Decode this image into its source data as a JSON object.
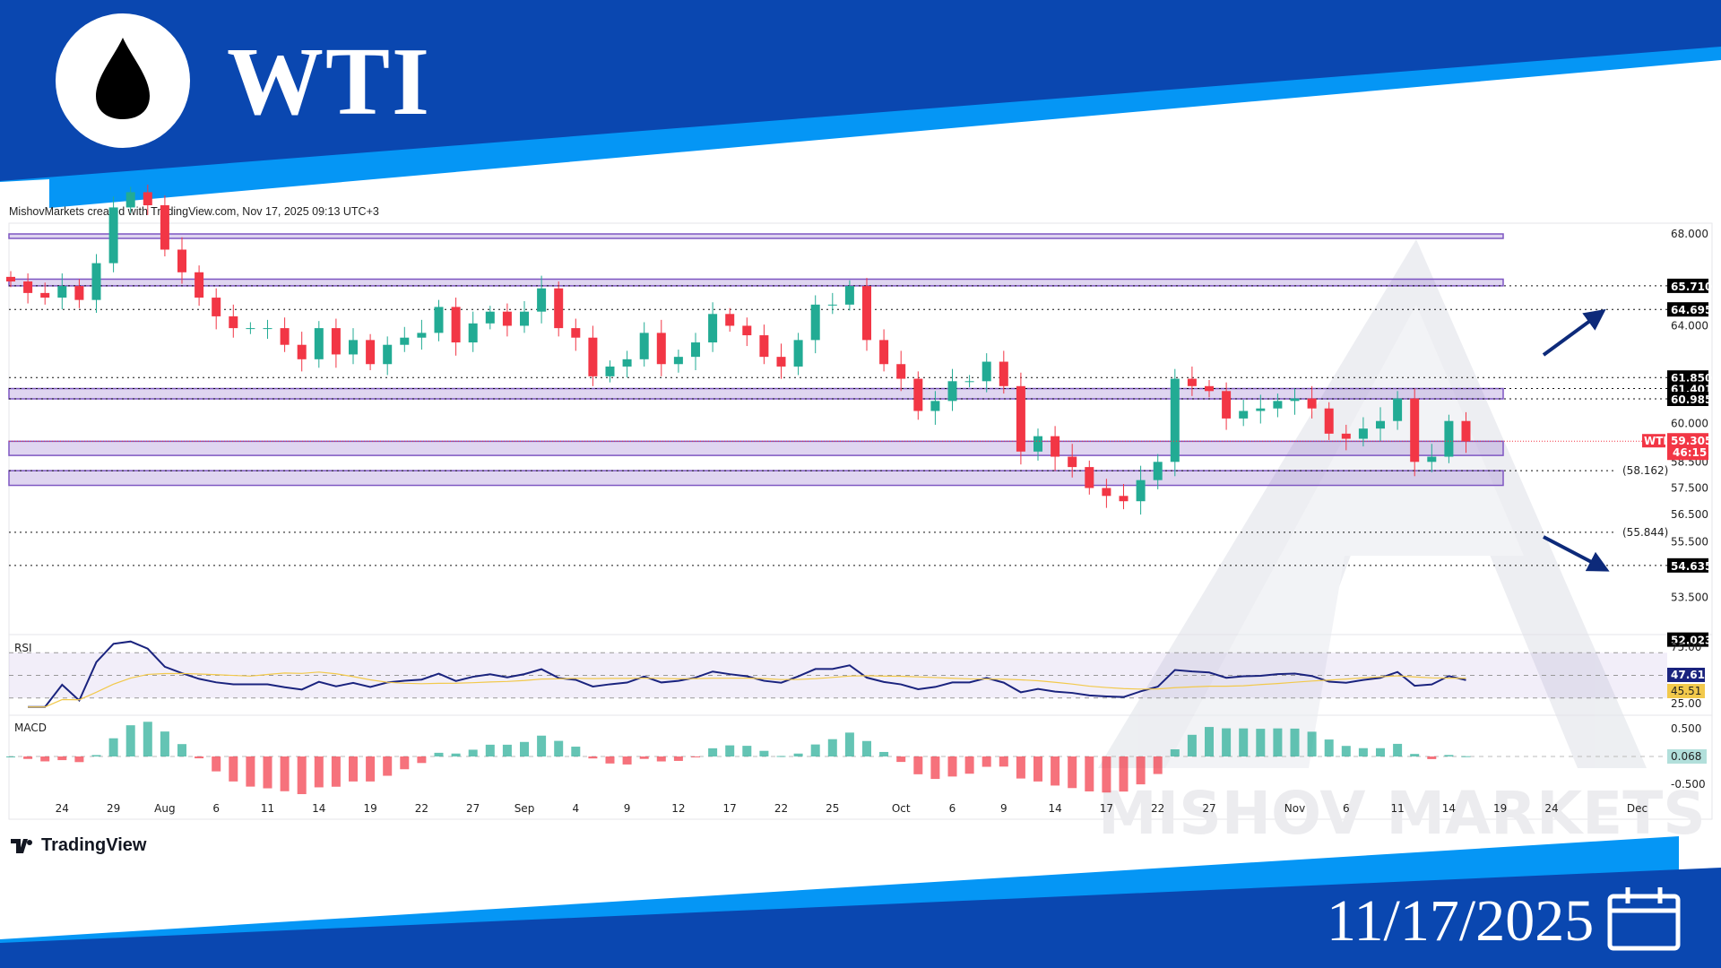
{
  "header": {
    "title": "WTI",
    "logo_icon": "oil-drop-icon"
  },
  "subtitle": "MishovMarkets created with TradingView.com, Nov 17, 2025 09:13 UTC+3",
  "footer": {
    "date": "11/17/2025",
    "calendar_icon": "calendar-icon",
    "brand": "TradingView"
  },
  "watermark": "MISHOV MARKETS",
  "colors": {
    "banner_dark": "#0a47b0",
    "banner_light": "#0596f5",
    "up": "#22ab94",
    "down": "#f23645",
    "zone": "#7e57c2",
    "arrow": "#0d2a7a",
    "rsi": "#1a237e",
    "rsi_ma": "#f2c94c"
  },
  "chart_data": {
    "type": "candlestick",
    "symbol": "WTI",
    "price_scale": "log",
    "start_date": "2025-07-21",
    "closes": [
      65.9,
      65.4,
      65.2,
      65.7,
      65.1,
      66.7,
      69.2,
      69.9,
      69.3,
      67.3,
      66.3,
      65.2,
      64.4,
      63.9,
      63.9,
      63.9,
      63.2,
      62.6,
      63.9,
      62.8,
      63.4,
      62.4,
      63.2,
      63.5,
      63.7,
      64.8,
      63.3,
      64.1,
      64.6,
      64.0,
      64.6,
      65.6,
      63.9,
      63.5,
      61.9,
      62.3,
      62.6,
      63.7,
      62.4,
      62.7,
      63.3,
      64.5,
      64.0,
      63.6,
      62.7,
      62.3,
      63.4,
      64.9,
      64.9,
      65.7,
      63.4,
      62.4,
      61.8,
      60.5,
      60.9,
      61.7,
      61.7,
      62.5,
      61.5,
      58.9,
      59.5,
      58.7,
      58.3,
      57.5,
      57.2,
      57.0,
      57.8,
      58.5,
      61.8,
      61.5,
      61.3,
      60.2,
      60.5,
      60.6,
      60.9,
      61.0,
      60.6,
      59.6,
      59.4,
      59.8,
      60.1,
      61.0,
      58.5,
      58.7,
      60.1,
      59.3
    ],
    "price_ticks": [
      "68.000",
      "64.000",
      "60.000",
      "58.500",
      "57.500",
      "56.500",
      "55.500",
      "53.500"
    ],
    "levels": [
      {
        "price": 65.71,
        "label": "65.710",
        "style": "box"
      },
      {
        "price": 64.695,
        "label": "64.695",
        "style": "box"
      },
      {
        "price": 61.85,
        "label": "61.850",
        "style": "box"
      },
      {
        "price": 61.401,
        "label": "61.401",
        "style": "box"
      },
      {
        "price": 60.985,
        "label": "60.985",
        "style": "box"
      },
      {
        "price": 58.162,
        "label": "(58.162)",
        "style": "inline"
      },
      {
        "price": 55.844,
        "label": "(55.844)",
        "style": "inline"
      },
      {
        "price": 54.635,
        "label": "54.635",
        "style": "box"
      },
      {
        "price": 52.023,
        "label": "52.023",
        "style": "box"
      }
    ],
    "zones": [
      [
        67.8,
        68.0
      ],
      [
        65.71,
        66.0
      ],
      [
        60.985,
        61.401
      ],
      [
        58.75,
        59.3
      ],
      [
        57.6,
        58.162
      ]
    ],
    "current": {
      "symbol": "WTI",
      "price": "59.305",
      "countdown": "46:15",
      "value": 59.305
    },
    "arrows": [
      {
        "direction": "up"
      },
      {
        "direction": "down"
      }
    ],
    "x_ticks": [
      {
        "date": "2025-07-24",
        "label": "24"
      },
      {
        "date": "2025-07-29",
        "label": "29"
      },
      {
        "date": "2025-08-01",
        "label": "Aug"
      },
      {
        "date": "2025-08-06",
        "label": "6"
      },
      {
        "date": "2025-08-11",
        "label": "11"
      },
      {
        "date": "2025-08-14",
        "label": "14"
      },
      {
        "date": "2025-08-19",
        "label": "19"
      },
      {
        "date": "2025-08-22",
        "label": "22"
      },
      {
        "date": "2025-08-27",
        "label": "27"
      },
      {
        "date": "2025-09-01",
        "label": "Sep"
      },
      {
        "date": "2025-09-04",
        "label": "4"
      },
      {
        "date": "2025-09-09",
        "label": "9"
      },
      {
        "date": "2025-09-12",
        "label": "12"
      },
      {
        "date": "2025-09-17",
        "label": "17"
      },
      {
        "date": "2025-09-22",
        "label": "22"
      },
      {
        "date": "2025-09-25",
        "label": "25"
      },
      {
        "date": "2025-10-01",
        "label": "Oct"
      },
      {
        "date": "2025-10-06",
        "label": "6"
      },
      {
        "date": "2025-10-09",
        "label": "9"
      },
      {
        "date": "2025-10-14",
        "label": "14"
      },
      {
        "date": "2025-10-17",
        "label": "17"
      },
      {
        "date": "2025-10-22",
        "label": "22"
      },
      {
        "date": "2025-10-27",
        "label": "27"
      },
      {
        "date": "2025-11-03",
        "label": "Nov"
      },
      {
        "date": "2025-11-06",
        "label": "6"
      },
      {
        "date": "2025-11-11",
        "label": "11"
      },
      {
        "date": "2025-11-14",
        "label": "14"
      },
      {
        "date": "2025-11-19",
        "label": "19"
      },
      {
        "date": "2025-11-24",
        "label": "24"
      },
      {
        "date": "2025-12-01",
        "label": "Dec"
      }
    ],
    "rsi": {
      "title": "RSI",
      "ticks": [
        "75.00",
        "25.00"
      ],
      "bands": [
        70,
        50,
        30
      ],
      "value": "47.61",
      "ma_value": "45.51"
    },
    "macd": {
      "title": "MACD",
      "ticks": [
        "0.500",
        "-0.500"
      ],
      "value": "0.068"
    }
  }
}
